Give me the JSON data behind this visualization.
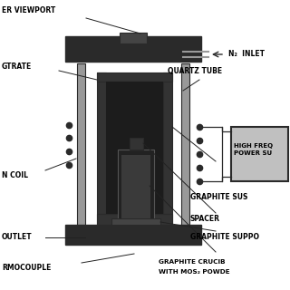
{
  "bg_color": "#ffffff",
  "dark_gray": "#2a2a2a",
  "mid_gray": "#555555",
  "light_gray": "#999999",
  "box_gray": "#c0c0c0",
  "line_color": "#222222",
  "labels": {
    "viewport": "ER VIEWPORT",
    "n2_inlet": "N₂  INLET",
    "quartz_tube": "QUARTZ TUBE",
    "high_freq_1": "HIGH FREQ",
    "high_freq_2": "POWER SU",
    "graphite_sus": "GRAPHITE SUS",
    "spacer": "SPACER",
    "graphite_supp": "GRAPHITE SUPPO",
    "graphite_cru_1": "GRAPHITE CRUCIB",
    "graphite_cru_2": "WITH MOS₂ POWDE",
    "gtrate": "GTRATE",
    "n_coil": "N COIL",
    "outlet": "OUTLET",
    "thermocouple": "RMOCOUPLE"
  },
  "fs": 5.5
}
